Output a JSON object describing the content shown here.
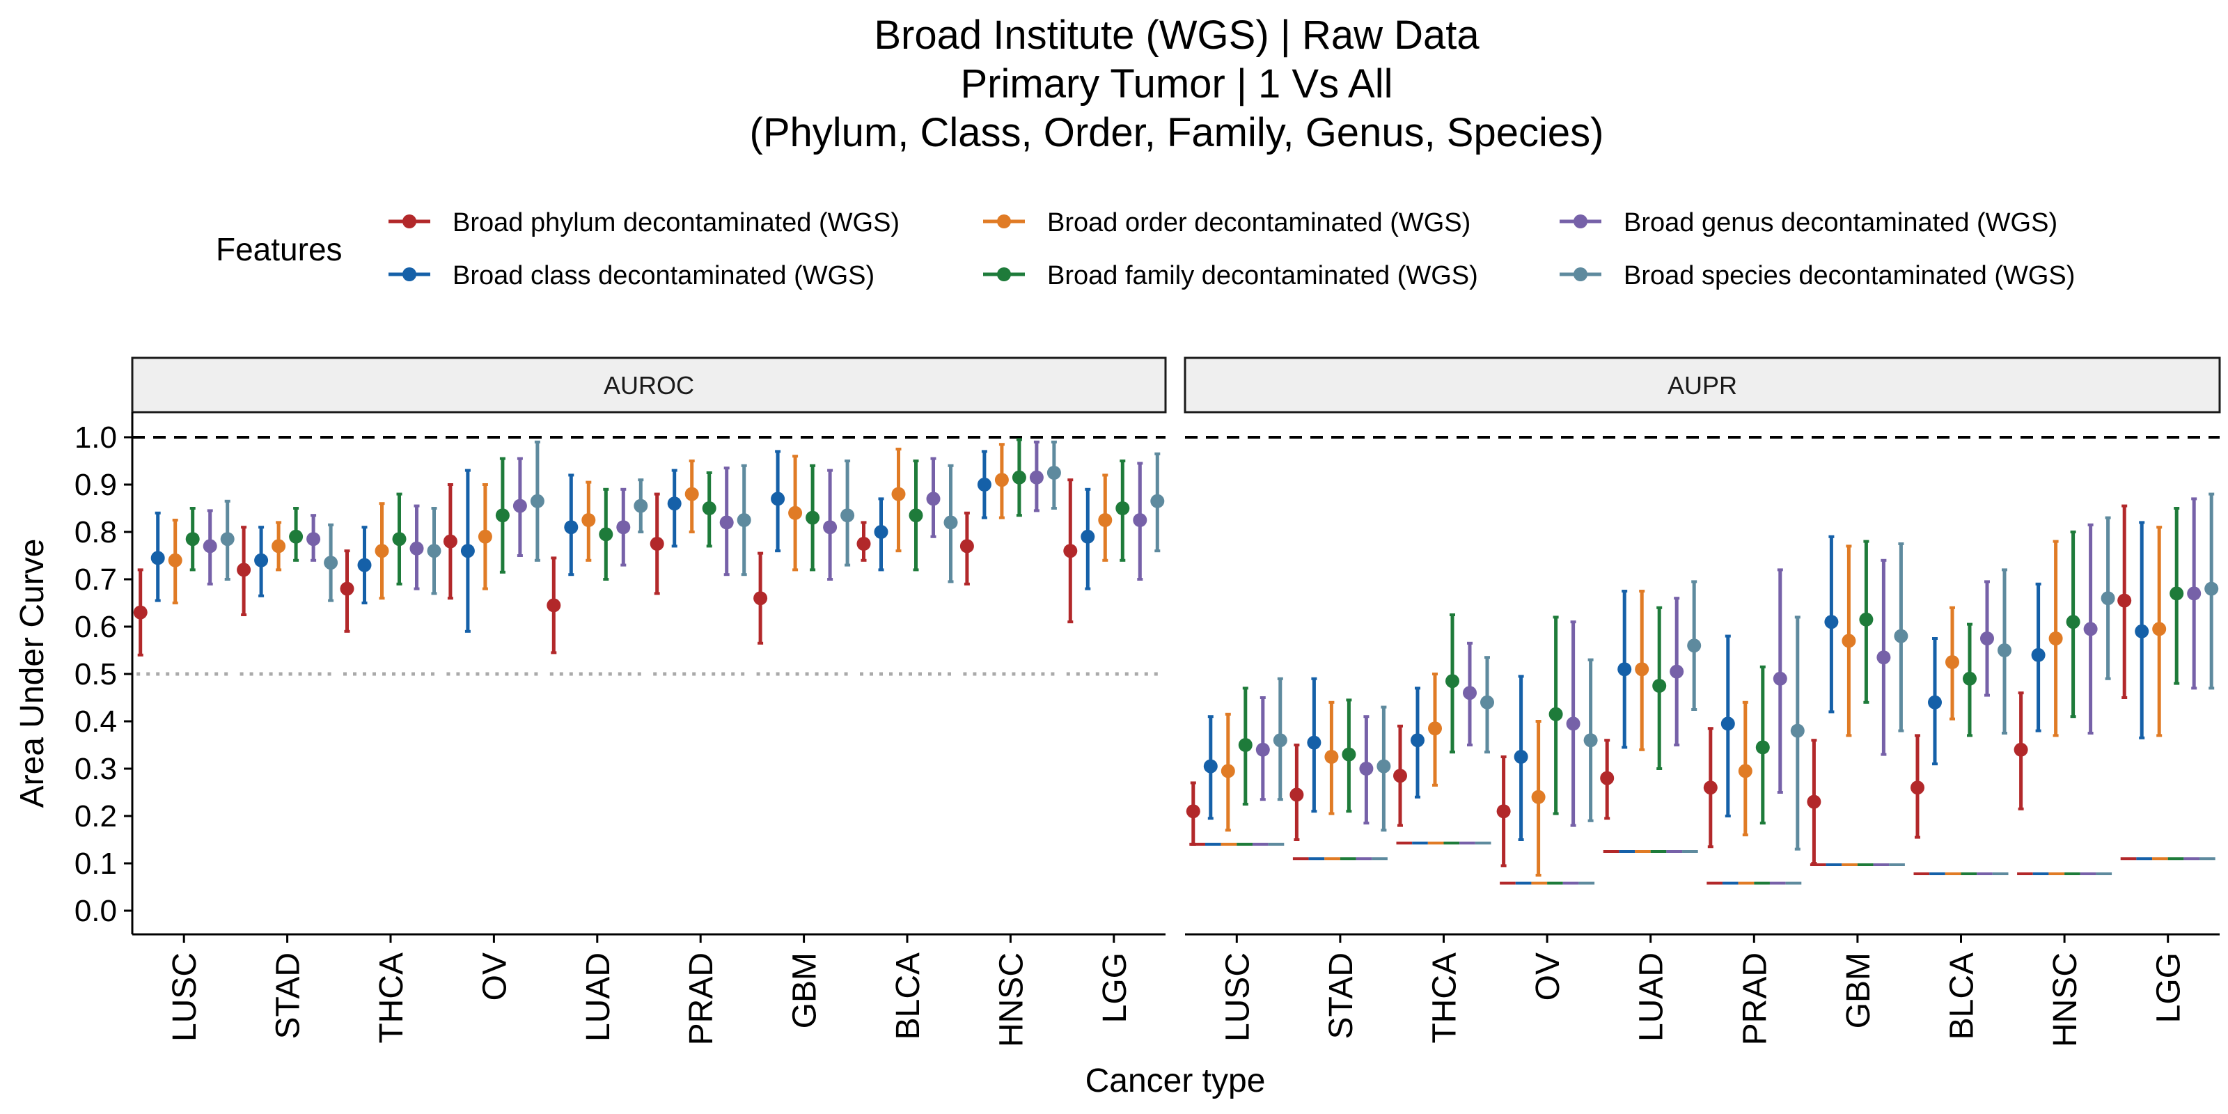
{
  "title_lines": [
    "Broad Institute (WGS) | Raw Data",
    "Primary Tumor | 1 Vs All",
    "(Phylum, Class, Order, Family, Genus, Species)"
  ],
  "legend": {
    "title": "Features",
    "items": [
      {
        "label": "Broad phylum decontaminated (WGS)",
        "color": "#B2282A"
      },
      {
        "label": "Broad order decontaminated (WGS)",
        "color": "#E07B25"
      },
      {
        "label": "Broad genus decontaminated (WGS)",
        "color": "#7661A8"
      },
      {
        "label": "Broad class decontaminated (WGS)",
        "color": "#1560A8"
      },
      {
        "label": "Broad family decontaminated (WGS)",
        "color": "#1E7B3A"
      },
      {
        "label": "Broad species decontaminated (WGS)",
        "color": "#5E8A9E"
      }
    ]
  },
  "chart_data": {
    "type": "scatter",
    "subtype": "pointrange",
    "xlabel": "Cancer type",
    "ylabel": "Area Under Curve",
    "ylim": [
      0,
      1
    ],
    "yticks": [
      "0.0",
      "0.1",
      "0.2",
      "0.3",
      "0.4",
      "0.5",
      "0.6",
      "0.7",
      "0.8",
      "0.9",
      "1.0"
    ],
    "categories": [
      "LUSC",
      "STAD",
      "THCA",
      "OV",
      "LUAD",
      "PRAD",
      "GBM",
      "BLCA",
      "HNSC",
      "LGG"
    ],
    "series_order": [
      "phylum",
      "class",
      "order",
      "family",
      "genus",
      "species"
    ],
    "series_colors": {
      "phylum": "#B2282A",
      "class": "#1560A8",
      "order": "#E07B25",
      "family": "#1E7B3A",
      "genus": "#7661A8",
      "species": "#5E8A9E"
    },
    "reference_line": 1.0,
    "panels": [
      {
        "label": "AUROC",
        "null_line": 0.5,
        "series": {
          "phylum": {
            "mean": [
              0.63,
              0.72,
              0.68,
              0.78,
              0.645,
              0.775,
              0.66,
              0.775,
              0.77,
              0.76
            ],
            "lo": [
              0.54,
              0.625,
              0.59,
              0.66,
              0.545,
              0.67,
              0.565,
              0.74,
              0.69,
              0.61
            ],
            "hi": [
              0.72,
              0.81,
              0.76,
              0.9,
              0.745,
              0.88,
              0.755,
              0.82,
              0.84,
              0.91
            ]
          },
          "class": {
            "mean": [
              0.745,
              0.74,
              0.73,
              0.76,
              0.81,
              0.86,
              0.87,
              0.8,
              0.9,
              0.79
            ],
            "lo": [
              0.655,
              0.665,
              0.65,
              0.59,
              0.71,
              0.77,
              0.76,
              0.72,
              0.83,
              0.68
            ],
            "hi": [
              0.84,
              0.81,
              0.81,
              0.93,
              0.92,
              0.93,
              0.97,
              0.87,
              0.97,
              0.89
            ]
          },
          "order": {
            "mean": [
              0.74,
              0.77,
              0.76,
              0.79,
              0.825,
              0.88,
              0.84,
              0.88,
              0.91,
              0.825
            ],
            "lo": [
              0.65,
              0.72,
              0.66,
              0.68,
              0.74,
              0.8,
              0.72,
              0.76,
              0.83,
              0.74
            ],
            "hi": [
              0.825,
              0.82,
              0.86,
              0.9,
              0.905,
              0.95,
              0.96,
              0.975,
              0.985,
              0.92
            ]
          },
          "family": {
            "mean": [
              0.785,
              0.79,
              0.785,
              0.835,
              0.795,
              0.85,
              0.83,
              0.835,
              0.915,
              0.85
            ],
            "lo": [
              0.72,
              0.74,
              0.69,
              0.715,
              0.7,
              0.77,
              0.72,
              0.72,
              0.835,
              0.74
            ],
            "hi": [
              0.85,
              0.85,
              0.88,
              0.955,
              0.89,
              0.925,
              0.94,
              0.95,
              0.995,
              0.95
            ]
          },
          "genus": {
            "mean": [
              0.77,
              0.785,
              0.765,
              0.855,
              0.81,
              0.82,
              0.81,
              0.87,
              0.915,
              0.825
            ],
            "lo": [
              0.69,
              0.74,
              0.68,
              0.75,
              0.73,
              0.71,
              0.7,
              0.79,
              0.845,
              0.7
            ],
            "hi": [
              0.845,
              0.835,
              0.855,
              0.955,
              0.89,
              0.935,
              0.93,
              0.955,
              0.99,
              0.945
            ]
          },
          "species": {
            "mean": [
              0.785,
              0.735,
              0.76,
              0.865,
              0.855,
              0.825,
              0.835,
              0.82,
              0.925,
              0.865
            ],
            "lo": [
              0.7,
              0.655,
              0.67,
              0.74,
              0.8,
              0.71,
              0.73,
              0.695,
              0.85,
              0.76
            ],
            "hi": [
              0.865,
              0.815,
              0.85,
              0.99,
              0.91,
              0.94,
              0.95,
              0.94,
              0.99,
              0.965
            ]
          }
        }
      },
      {
        "label": "AUPR",
        "null_levels": [
          0.14,
          0.11,
          0.143,
          0.058,
          0.125,
          0.058,
          0.097,
          0.078,
          0.078,
          0.11
        ],
        "series": {
          "phylum": {
            "mean": [
              0.21,
              0.245,
              0.285,
              0.21,
              0.28,
              0.26,
              0.23,
              0.26,
              0.34,
              0.655
            ],
            "lo": [
              0.14,
              0.15,
              0.18,
              0.095,
              0.195,
              0.135,
              0.1,
              0.155,
              0.215,
              0.45
            ],
            "hi": [
              0.27,
              0.35,
              0.39,
              0.325,
              0.36,
              0.385,
              0.36,
              0.37,
              0.46,
              0.855
            ]
          },
          "class": {
            "mean": [
              0.305,
              0.355,
              0.36,
              0.325,
              0.51,
              0.395,
              0.61,
              0.44,
              0.54,
              0.59
            ],
            "lo": [
              0.195,
              0.21,
              0.24,
              0.15,
              0.345,
              0.2,
              0.42,
              0.31,
              0.38,
              0.365
            ],
            "hi": [
              0.41,
              0.49,
              0.47,
              0.495,
              0.675,
              0.58,
              0.79,
              0.575,
              0.69,
              0.82
            ]
          },
          "order": {
            "mean": [
              0.295,
              0.325,
              0.385,
              0.24,
              0.51,
              0.295,
              0.57,
              0.525,
              0.575,
              0.595
            ],
            "lo": [
              0.17,
              0.205,
              0.265,
              0.075,
              0.34,
              0.16,
              0.37,
              0.405,
              0.37,
              0.37
            ],
            "hi": [
              0.415,
              0.44,
              0.5,
              0.4,
              0.675,
              0.44,
              0.77,
              0.64,
              0.78,
              0.81
            ]
          },
          "family": {
            "mean": [
              0.35,
              0.33,
              0.485,
              0.415,
              0.475,
              0.345,
              0.615,
              0.49,
              0.61,
              0.67
            ],
            "lo": [
              0.225,
              0.21,
              0.335,
              0.205,
              0.3,
              0.185,
              0.44,
              0.37,
              0.41,
              0.48
            ],
            "hi": [
              0.47,
              0.445,
              0.625,
              0.62,
              0.64,
              0.515,
              0.78,
              0.605,
              0.8,
              0.85
            ]
          },
          "genus": {
            "mean": [
              0.34,
              0.3,
              0.46,
              0.395,
              0.505,
              0.49,
              0.535,
              0.575,
              0.595,
              0.67
            ],
            "lo": [
              0.235,
              0.185,
              0.35,
              0.18,
              0.35,
              0.25,
              0.33,
              0.455,
              0.375,
              0.47
            ],
            "hi": [
              0.45,
              0.41,
              0.565,
              0.61,
              0.66,
              0.72,
              0.74,
              0.695,
              0.815,
              0.87
            ]
          },
          "species": {
            "mean": [
              0.36,
              0.305,
              0.44,
              0.36,
              0.56,
              0.38,
              0.58,
              0.55,
              0.66,
              0.68
            ],
            "lo": [
              0.235,
              0.17,
              0.335,
              0.19,
              0.425,
              0.13,
              0.38,
              0.375,
              0.49,
              0.47
            ],
            "hi": [
              0.49,
              0.43,
              0.535,
              0.53,
              0.695,
              0.62,
              0.775,
              0.72,
              0.83,
              0.88
            ]
          }
        }
      }
    ]
  }
}
